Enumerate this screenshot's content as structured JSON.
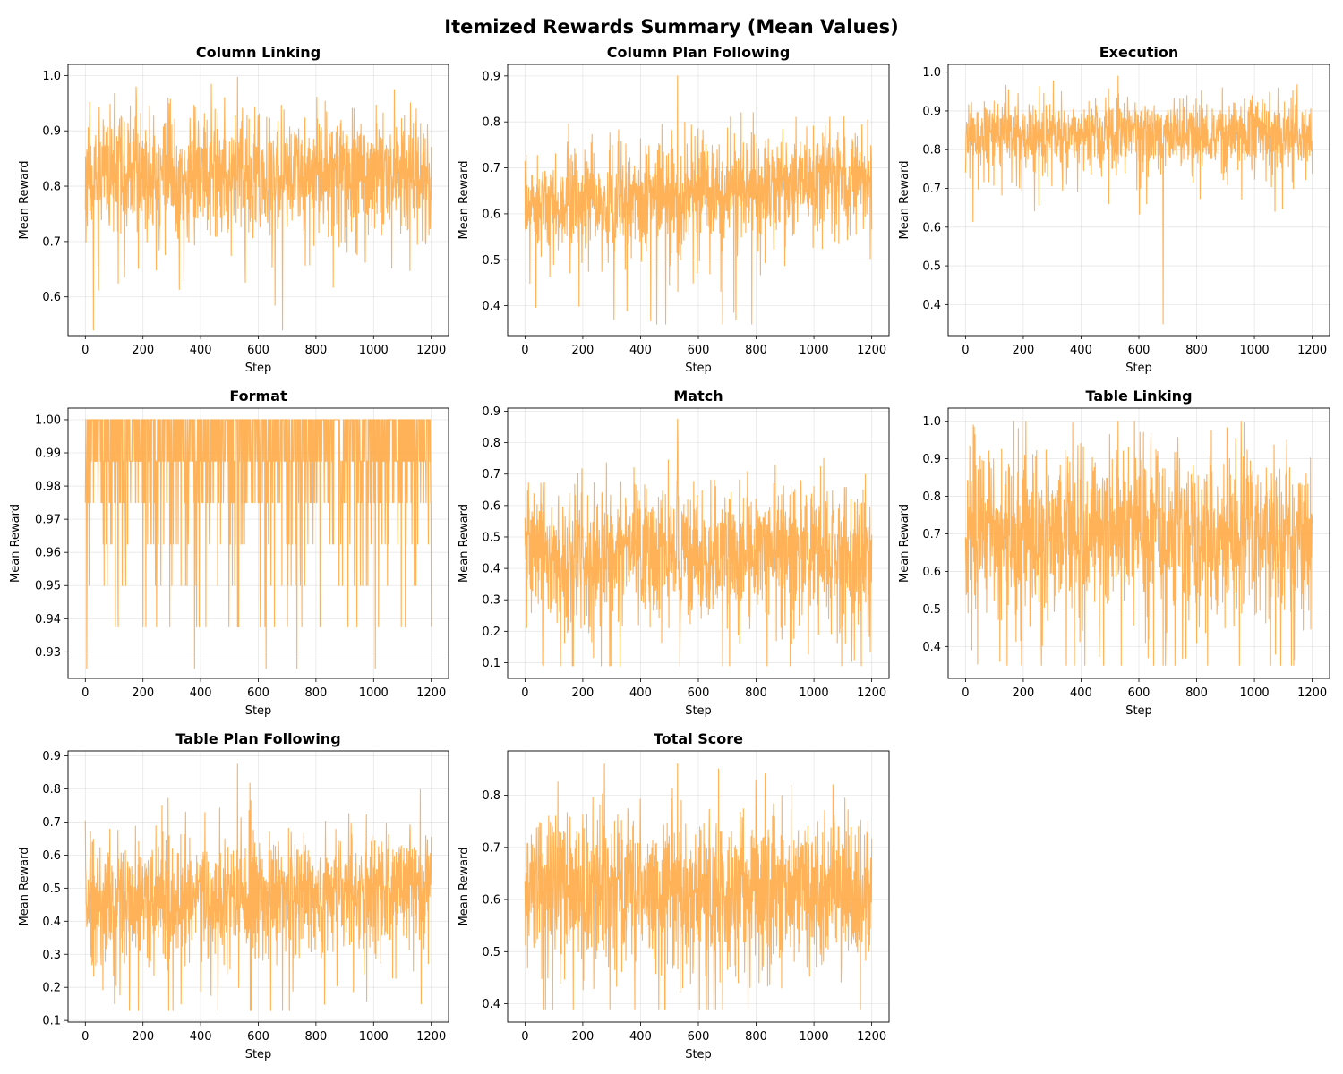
{
  "figure": {
    "title": "Itemized Rewards Summary (Mean Values)",
    "line_color": "#FFA53A"
  },
  "chart_data": [
    {
      "type": "line",
      "title": "Column Linking",
      "xlabel": "Step",
      "ylabel": "Mean Reward",
      "xlim": [
        -60,
        1260
      ],
      "ylim": [
        0.53,
        1.02
      ],
      "xticks": [
        0,
        200,
        400,
        600,
        800,
        1000,
        1200
      ],
      "yticks": [
        0.6,
        0.7,
        0.8,
        0.9,
        1.0
      ],
      "ytick_labels": [
        "0.6",
        "0.7",
        "0.8",
        "0.9",
        "1.0"
      ],
      "grid": true,
      "series": [
        {
          "name": "Column Linking",
          "steps": [
            0,
            1200
          ],
          "mean": 0.82,
          "spread": 0.055,
          "min": 0.54,
          "max": 0.997,
          "trend": 0.0,
          "seed": 11
        }
      ]
    },
    {
      "type": "line",
      "title": "Column Plan Following",
      "xlabel": "Step",
      "ylabel": "Mean Reward",
      "xlim": [
        -60,
        1260
      ],
      "ylim": [
        0.335,
        0.925
      ],
      "xticks": [
        0,
        200,
        400,
        600,
        800,
        1000,
        1200
      ],
      "yticks": [
        0.4,
        0.5,
        0.6,
        0.7,
        0.8,
        0.9
      ],
      "ytick_labels": [
        "0.4",
        "0.5",
        "0.6",
        "0.7",
        "0.8",
        "0.9"
      ],
      "grid": true,
      "series": [
        {
          "name": "Column Plan Following",
          "steps": [
            0,
            1200
          ],
          "mean": 0.63,
          "spread": 0.055,
          "min": 0.36,
          "max": 0.9,
          "trend": 0.08,
          "seed": 23
        }
      ]
    },
    {
      "type": "line",
      "title": "Execution",
      "xlabel": "Step",
      "ylabel": "Mean Reward",
      "xlim": [
        -60,
        1260
      ],
      "ylim": [
        0.32,
        1.02
      ],
      "xticks": [
        0,
        200,
        400,
        600,
        800,
        1000,
        1200
      ],
      "yticks": [
        0.4,
        0.5,
        0.6,
        0.7,
        0.8,
        0.9,
        1.0
      ],
      "ytick_labels": [
        "0.4",
        "0.5",
        "0.6",
        "0.7",
        "0.8",
        "0.9",
        "1.0"
      ],
      "grid": true,
      "series": [
        {
          "name": "Execution",
          "steps": [
            0,
            1200
          ],
          "mean": 0.84,
          "spread": 0.045,
          "min": 0.35,
          "max": 0.99,
          "trend": 0.0,
          "seed": 37
        }
      ]
    },
    {
      "type": "line",
      "title": "Format",
      "xlabel": "Step",
      "ylabel": "Mean Reward",
      "xlim": [
        -60,
        1260
      ],
      "ylim": [
        0.922,
        1.0035
      ],
      "xticks": [
        0,
        200,
        400,
        600,
        800,
        1000,
        1200
      ],
      "yticks": [
        0.93,
        0.94,
        0.95,
        0.96,
        0.97,
        0.98,
        0.99,
        1.0
      ],
      "ytick_labels": [
        "0.93",
        "0.94",
        "0.95",
        "0.96",
        "0.97",
        "0.98",
        "0.99",
        "1.00"
      ],
      "grid": true,
      "series": [
        {
          "name": "Format",
          "steps": [
            0,
            1200
          ],
          "levels": [
            1.0,
            0.9875,
            0.975,
            0.9625,
            0.95,
            0.9375,
            0.925
          ],
          "level_weights": [
            0.5,
            0.3,
            0.1,
            0.05,
            0.025,
            0.02,
            0.005
          ],
          "min": 0.925,
          "max": 1.0,
          "seed": 41
        }
      ]
    },
    {
      "type": "line",
      "title": "Match",
      "xlabel": "Step",
      "ylabel": "Mean Reward",
      "xlim": [
        -60,
        1260
      ],
      "ylim": [
        0.05,
        0.91
      ],
      "xticks": [
        0,
        200,
        400,
        600,
        800,
        1000,
        1200
      ],
      "yticks": [
        0.1,
        0.2,
        0.3,
        0.4,
        0.5,
        0.6,
        0.7,
        0.8,
        0.9
      ],
      "ytick_labels": [
        "0.1",
        "0.2",
        "0.3",
        "0.4",
        "0.5",
        "0.6",
        "0.7",
        "0.8",
        "0.9"
      ],
      "grid": true,
      "series": [
        {
          "name": "Match",
          "steps": [
            0,
            1200
          ],
          "mean": 0.45,
          "spread": 0.11,
          "min": 0.09,
          "max": 0.875,
          "trend": 0.0,
          "seed": 53
        }
      ]
    },
    {
      "type": "line",
      "title": "Table Linking",
      "xlabel": "Step",
      "ylabel": "Mean Reward",
      "xlim": [
        -60,
        1260
      ],
      "ylim": [
        0.315,
        1.035
      ],
      "xticks": [
        0,
        200,
        400,
        600,
        800,
        1000,
        1200
      ],
      "yticks": [
        0.4,
        0.5,
        0.6,
        0.7,
        0.8,
        0.9,
        1.0
      ],
      "ytick_labels": [
        "0.4",
        "0.5",
        "0.6",
        "0.7",
        "0.8",
        "0.9",
        "1.0"
      ],
      "grid": true,
      "series": [
        {
          "name": "Table Linking",
          "steps": [
            0,
            1200
          ],
          "mean": 0.71,
          "spread": 0.11,
          "min": 0.35,
          "max": 1.0,
          "trend": 0.0,
          "seed": 67
        }
      ]
    },
    {
      "type": "line",
      "title": "Table Plan Following",
      "xlabel": "Step",
      "ylabel": "Mean Reward",
      "xlim": [
        -60,
        1260
      ],
      "ylim": [
        0.095,
        0.915
      ],
      "xticks": [
        0,
        200,
        400,
        600,
        800,
        1000,
        1200
      ],
      "yticks": [
        0.1,
        0.2,
        0.3,
        0.4,
        0.5,
        0.6,
        0.7,
        0.8,
        0.9
      ],
      "ytick_labels": [
        "0.1",
        "0.2",
        "0.3",
        "0.4",
        "0.5",
        "0.6",
        "0.7",
        "0.8",
        "0.9"
      ],
      "grid": true,
      "series": [
        {
          "name": "Table Plan Following",
          "steps": [
            0,
            1200
          ],
          "mean": 0.46,
          "spread": 0.1,
          "min": 0.13,
          "max": 0.875,
          "trend": 0.06,
          "seed": 79
        }
      ]
    },
    {
      "type": "line",
      "title": "Total Score",
      "xlabel": "Step",
      "ylabel": "Mean Reward",
      "xlim": [
        -60,
        1260
      ],
      "ylim": [
        0.365,
        0.885
      ],
      "xticks": [
        0,
        200,
        400,
        600,
        800,
        1000,
        1200
      ],
      "yticks": [
        0.4,
        0.5,
        0.6,
        0.7,
        0.8
      ],
      "ytick_labels": [
        "0.4",
        "0.5",
        "0.6",
        "0.7",
        "0.8"
      ],
      "grid": true,
      "series": [
        {
          "name": "Total Score",
          "steps": [
            0,
            1200
          ],
          "mean": 0.62,
          "spread": 0.075,
          "min": 0.39,
          "max": 0.86,
          "trend": 0.0,
          "seed": 97
        }
      ]
    }
  ]
}
